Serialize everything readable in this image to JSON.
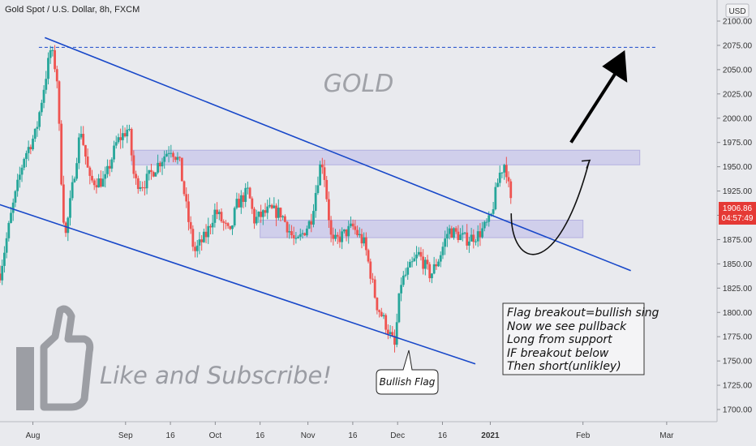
{
  "header": {
    "title": "Gold Spot / U.S. Dollar, 8h, FXCM",
    "currency": "USD"
  },
  "price_labels": {
    "last_price": "1906.86",
    "countdown": "04:57:49"
  },
  "annotations": {
    "watermark": "GOLD",
    "like_text": "Like and Subscribe!",
    "flag_label": "Bullish Flag",
    "note_lines": [
      "Flag breakout=bullish sing",
      "Now we see pullback",
      "Long from support",
      "IF breakout below",
      "Then short(unlikley)"
    ]
  },
  "colors": {
    "up": "#26a69a",
    "down": "#ef5350",
    "trendline": "#1848c9",
    "zone": "#c7c5ea",
    "price_tag": "#e53935",
    "background": "#e9eaee"
  },
  "icons": [
    "thumbs-up-icon",
    "arrow-icon"
  ],
  "chart_data": {
    "type": "candlestick",
    "title": "Gold Spot / U.S. Dollar, 8h, FXCM",
    "yaxis": {
      "unit": "USD",
      "range": [
        1680,
        2125
      ],
      "ticks": [
        1700,
        1725,
        1750,
        1775,
        1800,
        1825,
        1850,
        1875,
        1900,
        1925,
        1950,
        1975,
        2000,
        2025,
        2050,
        2075,
        2100
      ]
    },
    "xaxis": {
      "range": [
        "2020-07-21",
        "2021-03-07"
      ],
      "ticks": [
        {
          "label": "Aug",
          "date": "2020-08-01"
        },
        {
          "label": "Sep",
          "date": "2020-09-01"
        },
        {
          "label": "16",
          "date": "2020-09-16"
        },
        {
          "label": "Oct",
          "date": "2020-10-01"
        },
        {
          "label": "16",
          "date": "2020-10-16"
        },
        {
          "label": "Nov",
          "date": "2020-11-01"
        },
        {
          "label": "16",
          "date": "2020-11-16"
        },
        {
          "label": "Dec",
          "date": "2020-12-01"
        },
        {
          "label": "16",
          "date": "2020-12-16"
        },
        {
          "label": "2021",
          "date": "2021-01-01"
        },
        {
          "label": "Feb",
          "date": "2021-02-01"
        },
        {
          "label": "Mar",
          "date": "2021-03-01"
        }
      ]
    },
    "price_path": [
      [
        "2020-07-21",
        1840
      ],
      [
        "2020-07-25",
        1905
      ],
      [
        "2020-07-29",
        1960
      ],
      [
        "2020-08-02",
        1985
      ],
      [
        "2020-08-04",
        2020
      ],
      [
        "2020-08-07",
        2072
      ],
      [
        "2020-08-09",
        2045
      ],
      [
        "2020-08-11",
        1905
      ],
      [
        "2020-08-12",
        1880
      ],
      [
        "2020-08-17",
        1990
      ],
      [
        "2020-08-20",
        1935
      ],
      [
        "2020-08-25",
        1935
      ],
      [
        "2020-08-29",
        1975
      ],
      [
        "2020-09-02",
        1990
      ],
      [
        "2020-09-04",
        1935
      ],
      [
        "2020-09-07",
        1932
      ],
      [
        "2020-09-10",
        1945
      ],
      [
        "2020-09-16",
        1970
      ],
      [
        "2020-09-19",
        1955
      ],
      [
        "2020-09-22",
        1895
      ],
      [
        "2020-09-24",
        1862
      ],
      [
        "2020-09-28",
        1880
      ],
      [
        "2020-10-01",
        1905
      ],
      [
        "2020-10-06",
        1880
      ],
      [
        "2020-10-08",
        1910
      ],
      [
        "2020-10-12",
        1925
      ],
      [
        "2020-10-14",
        1895
      ],
      [
        "2020-10-19",
        1905
      ],
      [
        "2020-10-23",
        1902
      ],
      [
        "2020-10-28",
        1870
      ],
      [
        "2020-11-02",
        1895
      ],
      [
        "2020-11-05",
        1950
      ],
      [
        "2020-11-06",
        1955
      ],
      [
        "2020-11-09",
        1870
      ],
      [
        "2020-11-12",
        1878
      ],
      [
        "2020-11-16",
        1888
      ],
      [
        "2020-11-20",
        1870
      ],
      [
        "2020-11-24",
        1808
      ],
      [
        "2020-11-27",
        1788
      ],
      [
        "2020-11-30",
        1765
      ],
      [
        "2020-12-02",
        1830
      ],
      [
        "2020-12-08",
        1860
      ],
      [
        "2020-12-12",
        1838
      ],
      [
        "2020-12-15",
        1857
      ],
      [
        "2020-12-18",
        1885
      ],
      [
        "2020-12-21",
        1880
      ],
      [
        "2020-12-24",
        1875
      ],
      [
        "2020-12-28",
        1880
      ],
      [
        "2021-01-01",
        1895
      ],
      [
        "2021-01-04",
        1942
      ],
      [
        "2021-01-06",
        1955
      ],
      [
        "2021-01-08",
        1910
      ]
    ],
    "zones": [
      {
        "name": "resistance",
        "from": "2020-09-03",
        "to": "2021-02-20",
        "low": 1952,
        "high": 1967
      },
      {
        "name": "support",
        "from": "2020-10-16",
        "to": "2021-02-01",
        "low": 1877,
        "high": 1895
      }
    ],
    "trendlines": [
      {
        "name": "upper",
        "from": [
          "2020-08-05",
          2083
        ],
        "to": [
          "2021-02-17",
          1843
        ]
      },
      {
        "name": "lower",
        "from": [
          "2020-07-18",
          1914
        ],
        "to": [
          "2020-12-27",
          1747
        ]
      }
    ],
    "target_line": {
      "value": 2073,
      "style": "dashed"
    },
    "projection": {
      "pullback_curve": [
        [
          "2021-01-08",
          1902
        ],
        [
          "2021-01-18",
          1865
        ],
        [
          "2021-02-03",
          1955
        ]
      ],
      "arrow": {
        "from": [
          "2021-01-28",
          1975
        ],
        "to": [
          "2021-02-15",
          2070
        ]
      }
    }
  }
}
